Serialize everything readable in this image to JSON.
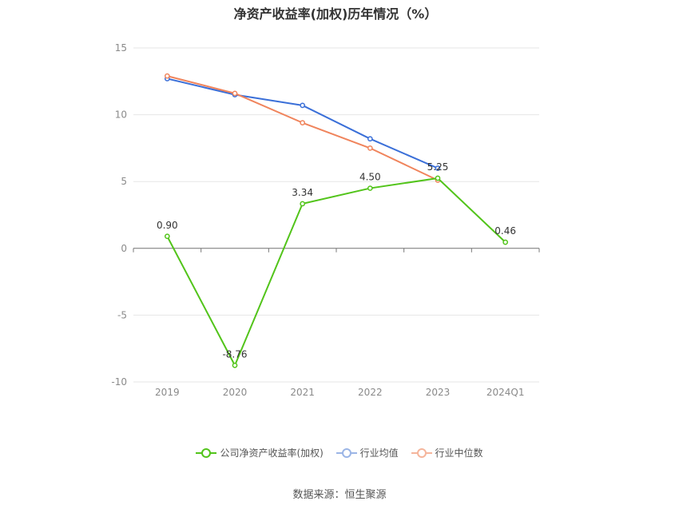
{
  "chart_data": {
    "type": "line",
    "title": "净资产收益率(加权)历年情况（%）",
    "categories": [
      "2019",
      "2020",
      "2021",
      "2022",
      "2023",
      "2024Q1"
    ],
    "ylim": [
      -10,
      15
    ],
    "yticks": [
      15,
      10,
      5,
      0,
      -5,
      -10
    ],
    "grid": true,
    "legend_position": "bottom",
    "series": [
      {
        "name": "公司净资产收益率(加权)",
        "color": "#52c41a",
        "values": [
          0.9,
          -8.76,
          3.34,
          4.5,
          5.25,
          0.46
        ],
        "labels": [
          "0.90",
          "-8.76",
          "3.34",
          "4.50",
          "5.25",
          "0.46"
        ]
      },
      {
        "name": "行业均值",
        "color": "#3a6fd8",
        "values": [
          12.7,
          11.5,
          10.7,
          8.2,
          6.0,
          null
        ]
      },
      {
        "name": "行业中位数",
        "color": "#f0845c",
        "values": [
          12.9,
          11.6,
          9.4,
          7.5,
          5.1,
          null
        ]
      }
    ]
  },
  "legend": {
    "items": [
      {
        "label": "公司净资产收益率(加权)",
        "color": "#52c41a"
      },
      {
        "label": "行业均值",
        "color": "#3a6fd8"
      },
      {
        "label": "行业中位数",
        "color": "#f0845c"
      }
    ]
  },
  "source": "数据来源：恒生聚源"
}
